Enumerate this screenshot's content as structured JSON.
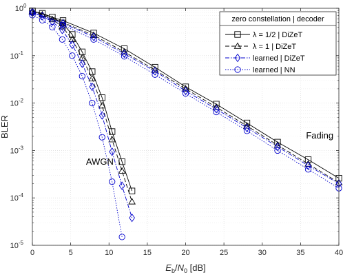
{
  "chart_data": {
    "type": "line",
    "xlabel_html": {
      "E": "E",
      "b": "b",
      "slash": "/",
      "N": "N",
      "zero": "0",
      "unit": " [dB]"
    },
    "ylabel": "BLER",
    "y_scale": "log",
    "xlim": [
      0,
      40
    ],
    "ylim": [
      1e-05,
      1
    ],
    "grid": true,
    "x_ticks": [
      0,
      5,
      10,
      15,
      20,
      25,
      30,
      35,
      40
    ],
    "x_tick_labels": [
      "0",
      "5",
      "10",
      "15",
      "20",
      "25",
      "30",
      "35",
      "40"
    ],
    "y_ticks": [
      {
        "value": 1,
        "base": "10",
        "exp": "0"
      },
      {
        "value": 0.1,
        "base": "10",
        "exp": "-1"
      },
      {
        "value": 0.01,
        "base": "10",
        "exp": "-2"
      },
      {
        "value": 0.001,
        "base": "10",
        "exp": "-3"
      },
      {
        "value": 0.0001,
        "base": "10",
        "exp": "-4"
      },
      {
        "value": 1e-05,
        "base": "10",
        "exp": "-5"
      }
    ],
    "legend": {
      "title": "zero constellation | decoder",
      "position": "top-right",
      "entries": [
        "λ = 1/2 | DiZeT",
        "λ = 1 | DiZeT",
        "learned | DiZeT",
        "learned | NN"
      ]
    },
    "annotations": [
      {
        "text": "AWGN",
        "x": 8.8,
        "y": 0.0005
      },
      {
        "text": "Fading",
        "x": 37.5,
        "y": 0.0018
      }
    ],
    "series": [
      {
        "name": "λ = 1/2 | DiZeT",
        "group": "AWGN",
        "color": "#000000",
        "dash": "solid",
        "marker": "square",
        "x": [
          0,
          1.3,
          2.6,
          3.9,
          5.2,
          6.5,
          7.8,
          9.1,
          10.4,
          11.7,
          13
        ],
        "y": [
          0.87,
          0.78,
          0.65,
          0.49,
          0.28,
          0.12,
          0.046,
          0.013,
          0.0025,
          0.00058,
          0.00014
        ]
      },
      {
        "name": "λ = 1 | DiZeT",
        "group": "AWGN",
        "color": "#000000",
        "dash": "dashed",
        "marker": "triangle",
        "x": [
          0,
          1.3,
          2.6,
          3.9,
          5.2,
          6.5,
          7.8,
          9.1,
          10.4,
          11.7,
          13
        ],
        "y": [
          0.84,
          0.73,
          0.58,
          0.41,
          0.22,
          0.09,
          0.033,
          0.0088,
          0.0017,
          0.00037,
          8.3e-05
        ]
      },
      {
        "name": "learned | DiZeT",
        "group": "AWGN",
        "color": "#0000cd",
        "dash": "dashdot",
        "marker": "diamond",
        "x": [
          0,
          1.3,
          2.6,
          3.9,
          5.2,
          6.5,
          7.8,
          9.1,
          10.4,
          11.7,
          13
        ],
        "y": [
          0.8,
          0.68,
          0.52,
          0.35,
          0.17,
          0.068,
          0.022,
          0.0055,
          0.00094,
          0.00018,
          3.8e-05
        ]
      },
      {
        "name": "learned | NN",
        "group": "AWGN",
        "color": "#0000cd",
        "dash": "dotted",
        "marker": "circle",
        "x": [
          0,
          1.3,
          2.6,
          3.9,
          5.2,
          6.5,
          7.8,
          9.1,
          10.4,
          11.7
        ],
        "y": [
          0.72,
          0.56,
          0.4,
          0.22,
          0.1,
          0.037,
          0.01,
          0.0019,
          0.00022,
          1.5e-05
        ]
      },
      {
        "name": "λ = 1/2 | DiZeT",
        "group": "Fading",
        "color": "#000000",
        "dash": "solid",
        "marker": "square",
        "x": [
          0,
          4,
          8,
          12,
          16,
          20,
          24,
          28,
          32,
          36,
          40
        ],
        "y": [
          0.88,
          0.55,
          0.3,
          0.14,
          0.057,
          0.022,
          0.0095,
          0.0038,
          0.0015,
          0.00064,
          0.00026
        ]
      },
      {
        "name": "λ = 1 | DiZeT",
        "group": "Fading",
        "color": "#000000",
        "dash": "dashed",
        "marker": "triangle",
        "x": [
          0,
          4,
          8,
          12,
          16,
          20,
          24,
          28,
          32,
          36,
          40
        ],
        "y": [
          0.86,
          0.5,
          0.27,
          0.12,
          0.05,
          0.02,
          0.0082,
          0.0033,
          0.0013,
          0.00052,
          0.00021
        ]
      },
      {
        "name": "learned | DiZeT",
        "group": "Fading",
        "color": "#0000cd",
        "dash": "dashdot",
        "marker": "diamond",
        "x": [
          0,
          4,
          8,
          12,
          16,
          20,
          24,
          28,
          32,
          36,
          40
        ],
        "y": [
          0.84,
          0.48,
          0.25,
          0.11,
          0.047,
          0.018,
          0.0075,
          0.003,
          0.0012,
          0.00048,
          0.0002
        ]
      },
      {
        "name": "learned | NN",
        "group": "Fading",
        "color": "#0000cd",
        "dash": "dotted",
        "marker": "circle",
        "x": [
          0,
          4,
          8,
          12,
          16,
          20,
          24,
          28,
          32,
          36,
          40
        ],
        "y": [
          0.81,
          0.44,
          0.22,
          0.097,
          0.04,
          0.016,
          0.0065,
          0.0026,
          0.001,
          0.0004,
          0.00016
        ]
      }
    ]
  }
}
